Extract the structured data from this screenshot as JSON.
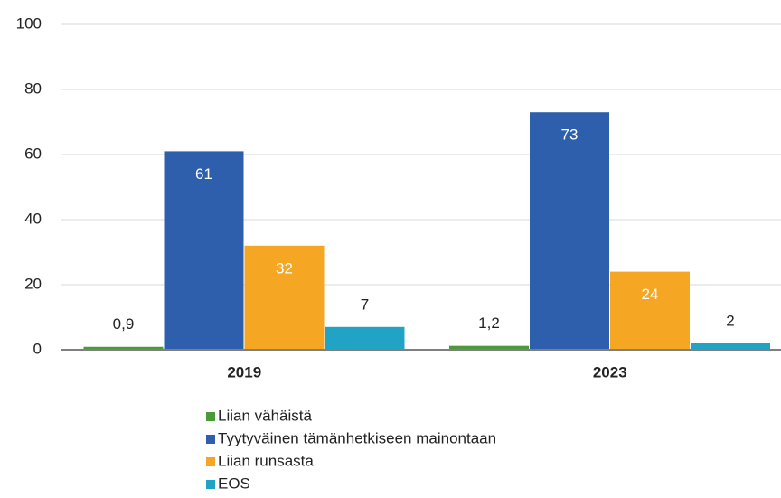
{
  "chart_data": {
    "type": "bar",
    "categories": [
      "2019",
      "2023"
    ],
    "series": [
      {
        "name": "Liian vähäistä",
        "color": "#4a9a3a",
        "values": [
          0.9,
          1.2
        ],
        "value_labels": [
          "0,9",
          "1,2"
        ]
      },
      {
        "name": "Tyytyväinen tämänhetkiseen mainontaan",
        "color": "#2e5fad",
        "values": [
          61,
          73
        ]
      },
      {
        "name": "Liian runsasta",
        "color": "#f5a623",
        "values": [
          32,
          24
        ]
      },
      {
        "name": "EOS",
        "color": "#21a3c6",
        "values": [
          7,
          2
        ]
      }
    ],
    "ylim": [
      0,
      100
    ],
    "yticks": [
      0,
      20,
      40,
      60,
      80,
      100
    ],
    "grid": true
  }
}
